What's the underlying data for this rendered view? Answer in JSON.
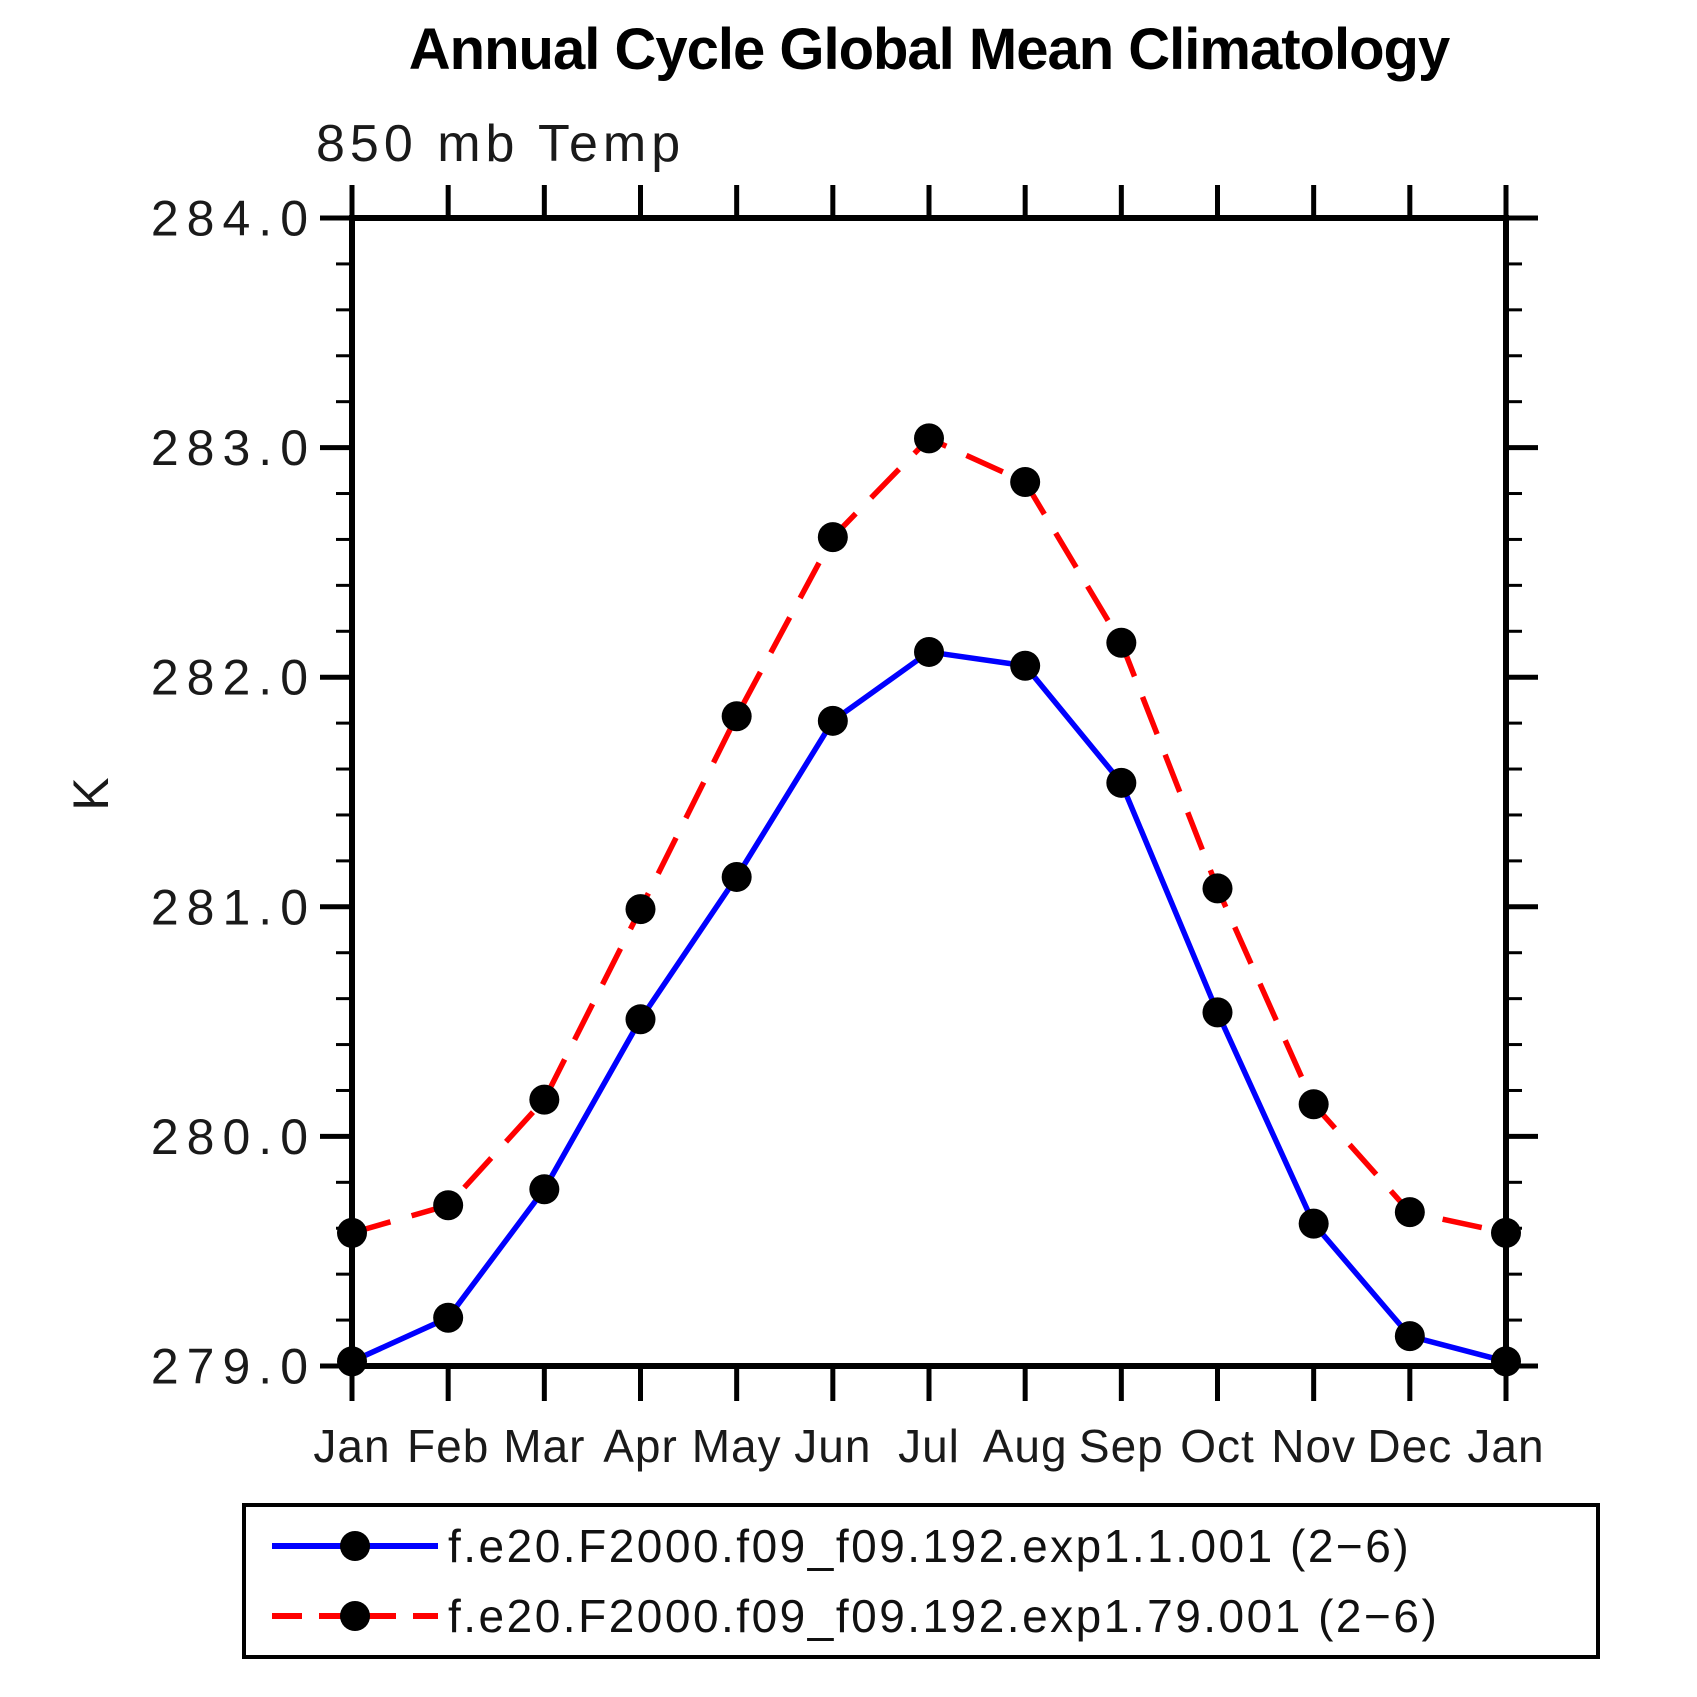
{
  "page": {
    "background": "#ffffff"
  },
  "chart_data": {
    "type": "line",
    "title": "Annual Cycle Global Mean Climatology",
    "subtitle": "850 mb Temp",
    "ylabel": "K",
    "xlabel": "",
    "categories": [
      "Jan",
      "Feb",
      "Mar",
      "Apr",
      "May",
      "Jun",
      "Jul",
      "Aug",
      "Sep",
      "Oct",
      "Nov",
      "Dec",
      "Jan"
    ],
    "ylim": [
      279.0,
      284.0
    ],
    "yticks": [
      "279.0",
      "280.0",
      "281.0",
      "282.0",
      "283.0",
      "284.0"
    ],
    "ytick_minor_step": 0.2,
    "grid": false,
    "legend_position": "bottom",
    "axis_color": "#000000",
    "marker_color": "#000000",
    "series": [
      {
        "name": "f.e20.F2000.f09_f09.192.exp1.1.001 (2−6)",
        "color": "#0000ff",
        "line_style": "solid",
        "marker": "circle",
        "values": [
          279.02,
          279.21,
          279.77,
          280.51,
          281.13,
          281.81,
          282.11,
          282.05,
          281.54,
          280.54,
          279.62,
          279.13,
          279.02
        ]
      },
      {
        "name": "f.e20.F2000.f09_f09.192.exp1.79.001 (2−6)",
        "color": "#ff0000",
        "line_style": "dashed",
        "marker": "circle",
        "values": [
          279.58,
          279.7,
          280.16,
          280.99,
          281.83,
          282.61,
          283.04,
          282.85,
          282.15,
          281.08,
          280.14,
          279.67,
          279.58
        ]
      }
    ]
  }
}
